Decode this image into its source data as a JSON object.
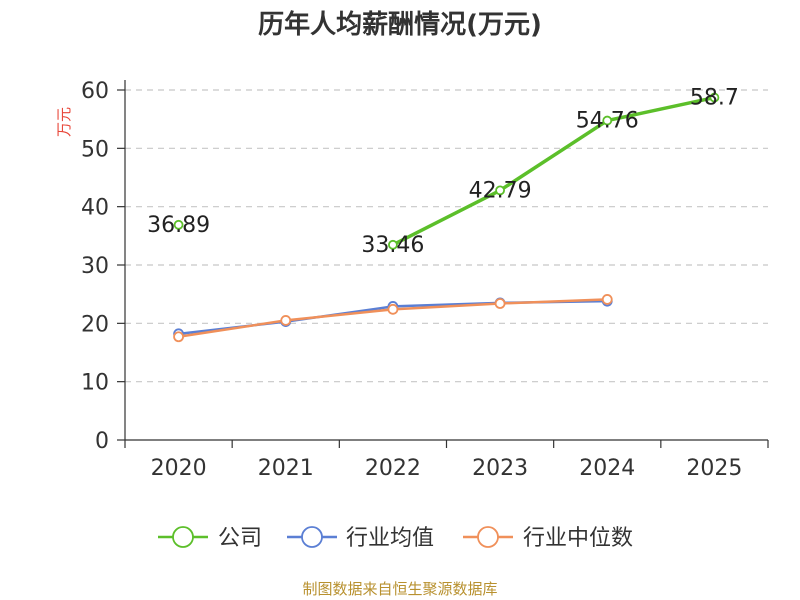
{
  "chart_data": {
    "type": "line",
    "title": "历年人均薪酬情况(万元)",
    "ylabel": "万元",
    "xlabel": "",
    "categories": [
      "2020",
      "2021",
      "2022",
      "2023",
      "2024",
      "2025"
    ],
    "ylim": [
      0,
      60
    ],
    "yticks": [
      0,
      10,
      20,
      30,
      40,
      50,
      60
    ],
    "grid": true,
    "legend_position": "bottom",
    "series": [
      {
        "name": "公司",
        "color": "#5cbf2a",
        "values": [
          36.89,
          null,
          33.46,
          42.79,
          54.76,
          58.7
        ],
        "labels": [
          "36.89",
          "",
          "33.46",
          "42.79",
          "54.76",
          "58.7"
        ]
      },
      {
        "name": "行业均值",
        "color": "#5b7fd4",
        "values": [
          18.2,
          20.3,
          22.9,
          23.5,
          23.8,
          null
        ],
        "labels": []
      },
      {
        "name": "行业中位数",
        "color": "#f0905a",
        "values": [
          17.7,
          20.5,
          22.4,
          23.4,
          24.1,
          null
        ],
        "labels": []
      }
    ]
  },
  "source": "制图数据来自恒生聚源数据库"
}
